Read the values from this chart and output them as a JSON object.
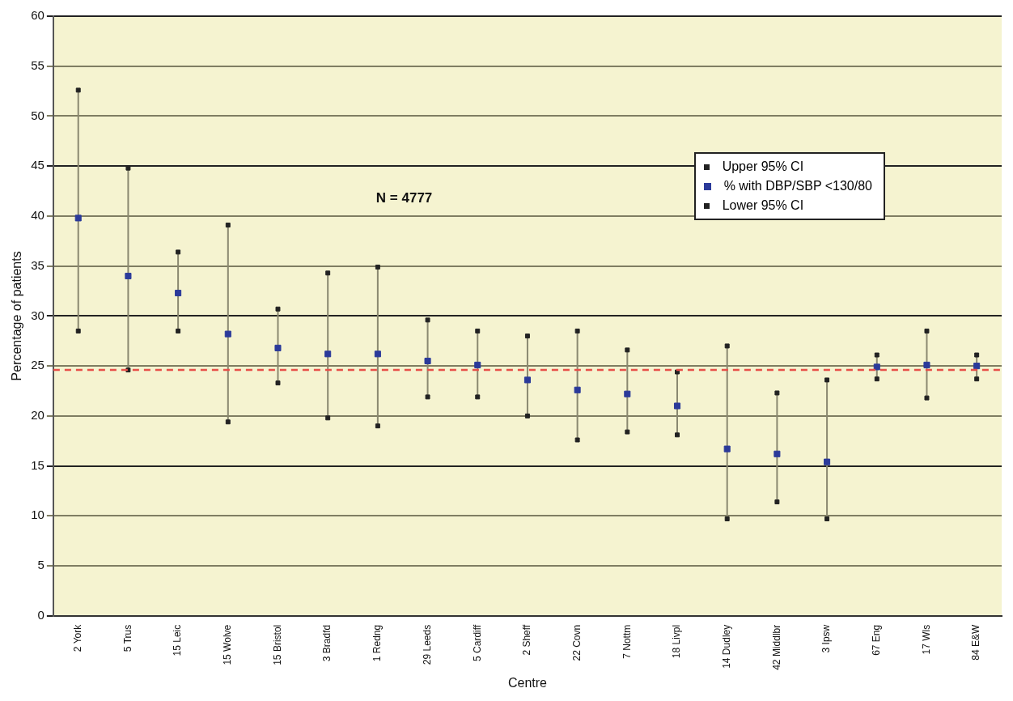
{
  "chart_data": {
    "type": "scatter",
    "xlabel": "Centre",
    "ylabel": "Percentage of patients",
    "categories": [
      "2 York",
      "5 Trus",
      "15 Leic",
      "15 Wolve",
      "15 Bristol",
      "3 Bradfd",
      "1 Redng",
      "29 Leeds",
      "5 Cardiff",
      "2 Sheff",
      "22 Covn",
      "7 Nottm",
      "18 Livpl",
      "14 Dudley",
      "42 Middlbr",
      "3 Ipsw",
      "67 Eng",
      "17 Wls",
      "84 E&W"
    ],
    "series": [
      {
        "name": "Upper 95% CI",
        "color": "#222222",
        "marker": "square",
        "values": [
          52.6,
          44.8,
          36.4,
          39.1,
          30.7,
          34.3,
          34.9,
          29.6,
          28.5,
          28.0,
          28.5,
          26.6,
          24.4,
          27.0,
          22.3,
          23.6,
          26.1,
          28.5,
          26.1
        ]
      },
      {
        "name": "% with DBP/SBP <130/80",
        "color": "#2b3a9a",
        "marker": "square",
        "values": [
          39.8,
          34.0,
          32.3,
          28.2,
          26.8,
          26.2,
          26.2,
          25.5,
          25.1,
          23.6,
          22.6,
          22.2,
          21.0,
          16.7,
          16.2,
          15.4,
          24.9,
          25.1,
          25.0
        ]
      },
      {
        "name": "Lower 95% CI",
        "color": "#222222",
        "marker": "square",
        "values": [
          28.5,
          24.6,
          28.5,
          19.4,
          23.3,
          19.8,
          19.0,
          21.9,
          21.9,
          20.0,
          17.6,
          18.4,
          18.1,
          9.7,
          11.4,
          9.7,
          23.7,
          21.8,
          23.7
        ]
      }
    ],
    "ylim": [
      0,
      60
    ],
    "yticks": [
      0,
      5,
      10,
      15,
      20,
      25,
      30,
      35,
      40,
      45,
      50,
      55,
      60
    ],
    "grid": "y",
    "legend": "top right",
    "ref_lines": [
      {
        "axis": "y",
        "value": 24.6,
        "color": "#e8504a",
        "line_style": "dashed"
      }
    ],
    "annotations": [
      "N = 4777"
    ]
  }
}
